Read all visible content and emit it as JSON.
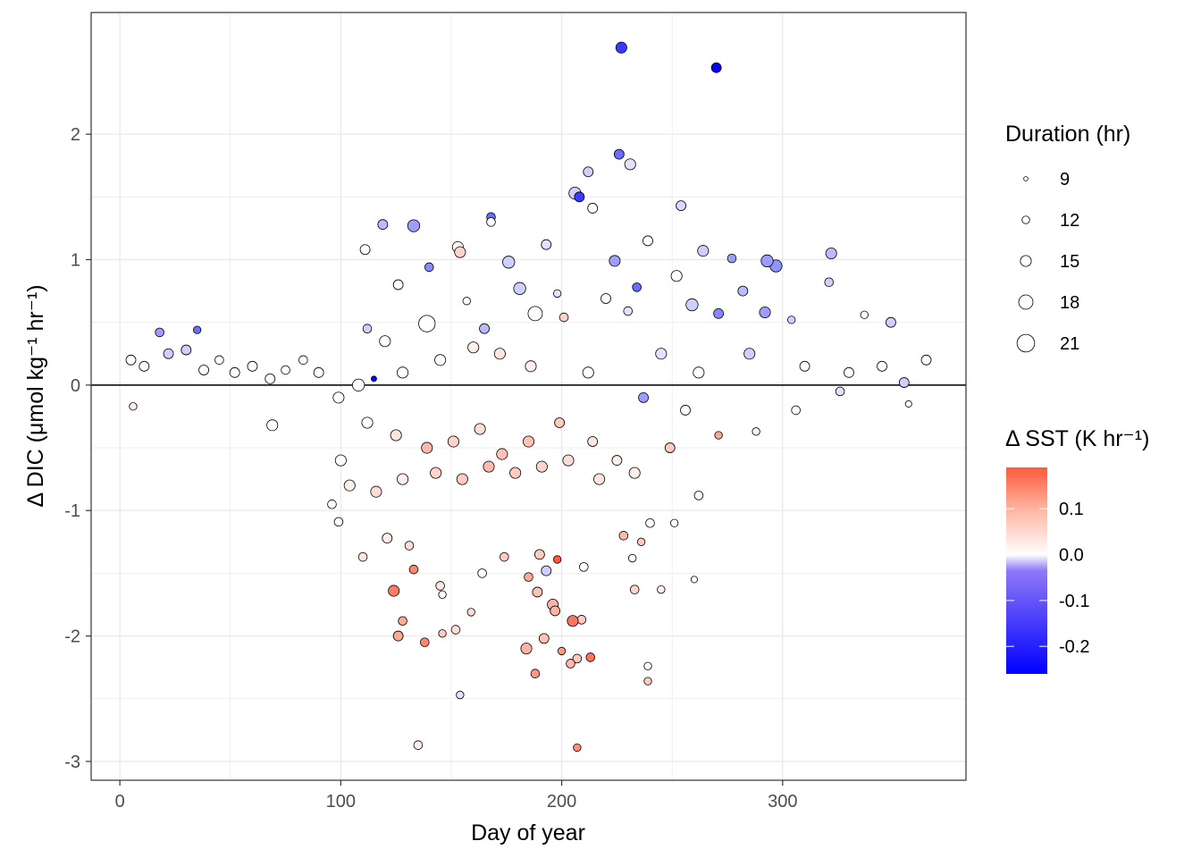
{
  "colors": {
    "positive": "#FF5A3C",
    "neutral": "#FFFFFF",
    "negative": "#0000FF",
    "grid": "#EBEBEB",
    "panel_border": "#333333",
    "zero_line": "#000000"
  },
  "chart_data": {
    "type": "scatter",
    "xlabel": "Day of year",
    "ylabel": "Δ DIC (μmol kg⁻¹ hr⁻¹)",
    "xlim": [
      -13,
      383
    ],
    "ylim": [
      -3.15,
      2.97
    ],
    "x_ticks": [
      0,
      100,
      200,
      300
    ],
    "y_ticks": [
      -3,
      -2,
      -1,
      0,
      1,
      2
    ],
    "grid": true,
    "hline": 0,
    "legend_position": "right",
    "size_legend": {
      "title": "Duration (hr)",
      "values": [
        9,
        12,
        15,
        18,
        21
      ]
    },
    "color_legend": {
      "title": "Δ SST (K hr⁻¹)",
      "ticks": [
        0.1,
        0.0,
        -0.1,
        -0.2
      ],
      "tick_labels": [
        "0.1",
        "0.0",
        "-0.1",
        "-0.2"
      ],
      "range": [
        -0.26,
        0.19
      ]
    },
    "points": [
      {
        "x": 227,
        "y": 2.69,
        "sst": -0.2,
        "duration": 15
      },
      {
        "x": 270,
        "y": 2.53,
        "sst": -0.26,
        "duration": 14
      },
      {
        "x": 226,
        "y": 1.84,
        "sst": -0.15,
        "duration": 14
      },
      {
        "x": 231,
        "y": 1.76,
        "sst": -0.03,
        "duration": 15
      },
      {
        "x": 212,
        "y": 1.7,
        "sst": -0.05,
        "duration": 14
      },
      {
        "x": 206,
        "y": 1.53,
        "sst": -0.05,
        "duration": 16
      },
      {
        "x": 208,
        "y": 1.5,
        "sst": -0.2,
        "duration": 14
      },
      {
        "x": 214,
        "y": 1.41,
        "sst": 0.0,
        "duration": 14
      },
      {
        "x": 254,
        "y": 1.43,
        "sst": -0.04,
        "duration": 14
      },
      {
        "x": 168,
        "y": 1.34,
        "sst": -0.15,
        "duration": 13
      },
      {
        "x": 119,
        "y": 1.28,
        "sst": -0.07,
        "duration": 14
      },
      {
        "x": 133,
        "y": 1.27,
        "sst": -0.1,
        "duration": 16
      },
      {
        "x": 168,
        "y": 1.3,
        "sst": 0.0,
        "duration": 13
      },
      {
        "x": 193,
        "y": 1.12,
        "sst": -0.03,
        "duration": 14
      },
      {
        "x": 153,
        "y": 1.1,
        "sst": 0.0,
        "duration": 15
      },
      {
        "x": 154,
        "y": 1.06,
        "sst": 0.05,
        "duration": 15
      },
      {
        "x": 111,
        "y": 1.08,
        "sst": 0.0,
        "duration": 14
      },
      {
        "x": 239,
        "y": 1.15,
        "sst": 0.0,
        "duration": 14
      },
      {
        "x": 264,
        "y": 1.07,
        "sst": -0.05,
        "duration": 15
      },
      {
        "x": 297,
        "y": 0.95,
        "sst": -0.11,
        "duration": 16
      },
      {
        "x": 322,
        "y": 1.05,
        "sst": -0.07,
        "duration": 15
      },
      {
        "x": 293,
        "y": 0.99,
        "sst": -0.1,
        "duration": 16
      },
      {
        "x": 277,
        "y": 1.01,
        "sst": -0.1,
        "duration": 13
      },
      {
        "x": 224,
        "y": 0.99,
        "sst": -0.1,
        "duration": 15
      },
      {
        "x": 234,
        "y": 0.78,
        "sst": -0.15,
        "duration": 13
      },
      {
        "x": 140,
        "y": 0.94,
        "sst": -0.12,
        "duration": 13
      },
      {
        "x": 176,
        "y": 0.98,
        "sst": -0.05,
        "duration": 16
      },
      {
        "x": 181,
        "y": 0.77,
        "sst": -0.05,
        "duration": 16
      },
      {
        "x": 252,
        "y": 0.87,
        "sst": 0.0,
        "duration": 15
      },
      {
        "x": 282,
        "y": 0.75,
        "sst": -0.07,
        "duration": 14
      },
      {
        "x": 321,
        "y": 0.82,
        "sst": -0.05,
        "duration": 13
      },
      {
        "x": 126,
        "y": 0.8,
        "sst": 0.0,
        "duration": 14
      },
      {
        "x": 157,
        "y": 0.67,
        "sst": 0.0,
        "duration": 12
      },
      {
        "x": 198,
        "y": 0.73,
        "sst": -0.03,
        "duration": 12
      },
      {
        "x": 220,
        "y": 0.69,
        "sst": 0.0,
        "duration": 14
      },
      {
        "x": 188,
        "y": 0.57,
        "sst": 0.0,
        "duration": 18
      },
      {
        "x": 259,
        "y": 0.64,
        "sst": -0.05,
        "duration": 16
      },
      {
        "x": 271,
        "y": 0.57,
        "sst": -0.12,
        "duration": 14
      },
      {
        "x": 292,
        "y": 0.58,
        "sst": -0.1,
        "duration": 15
      },
      {
        "x": 139,
        "y": 0.49,
        "sst": 0.0,
        "duration": 20
      },
      {
        "x": 165,
        "y": 0.45,
        "sst": -0.07,
        "duration": 14
      },
      {
        "x": 201,
        "y": 0.54,
        "sst": 0.05,
        "duration": 13
      },
      {
        "x": 230,
        "y": 0.59,
        "sst": -0.03,
        "duration": 13
      },
      {
        "x": 112,
        "y": 0.45,
        "sst": -0.05,
        "duration": 13
      },
      {
        "x": 18,
        "y": 0.42,
        "sst": -0.1,
        "duration": 13
      },
      {
        "x": 35,
        "y": 0.44,
        "sst": -0.15,
        "duration": 12
      },
      {
        "x": 304,
        "y": 0.52,
        "sst": -0.05,
        "duration": 12
      },
      {
        "x": 337,
        "y": 0.56,
        "sst": 0.0,
        "duration": 12
      },
      {
        "x": 349,
        "y": 0.5,
        "sst": -0.05,
        "duration": 14
      },
      {
        "x": 5,
        "y": 0.2,
        "sst": 0.0,
        "duration": 14
      },
      {
        "x": 11,
        "y": 0.15,
        "sst": 0.0,
        "duration": 14
      },
      {
        "x": 22,
        "y": 0.25,
        "sst": -0.05,
        "duration": 14
      },
      {
        "x": 30,
        "y": 0.28,
        "sst": -0.05,
        "duration": 14
      },
      {
        "x": 38,
        "y": 0.12,
        "sst": 0.0,
        "duration": 14
      },
      {
        "x": 45,
        "y": 0.2,
        "sst": 0.0,
        "duration": 13
      },
      {
        "x": 52,
        "y": 0.1,
        "sst": 0.0,
        "duration": 14
      },
      {
        "x": 60,
        "y": 0.15,
        "sst": 0.0,
        "duration": 14
      },
      {
        "x": 68,
        "y": 0.05,
        "sst": 0.0,
        "duration": 14
      },
      {
        "x": 75,
        "y": 0.12,
        "sst": 0.0,
        "duration": 13
      },
      {
        "x": 83,
        "y": 0.2,
        "sst": 0.0,
        "duration": 13
      },
      {
        "x": 90,
        "y": 0.1,
        "sst": 0.0,
        "duration": 14
      },
      {
        "x": 6,
        "y": -0.17,
        "sst": 0.02,
        "duration": 12
      },
      {
        "x": 69,
        "y": -0.32,
        "sst": 0.0,
        "duration": 15
      },
      {
        "x": 115,
        "y": 0.05,
        "sst": -0.26,
        "duration": 10
      },
      {
        "x": 108,
        "y": 0.0,
        "sst": 0.0,
        "duration": 16
      },
      {
        "x": 99,
        "y": -0.1,
        "sst": 0.0,
        "duration": 15
      },
      {
        "x": 120,
        "y": 0.35,
        "sst": 0.0,
        "duration": 15
      },
      {
        "x": 128,
        "y": 0.1,
        "sst": 0.0,
        "duration": 15
      },
      {
        "x": 145,
        "y": 0.2,
        "sst": 0.0,
        "duration": 15
      },
      {
        "x": 160,
        "y": 0.3,
        "sst": 0.02,
        "duration": 15
      },
      {
        "x": 172,
        "y": 0.25,
        "sst": 0.03,
        "duration": 15
      },
      {
        "x": 186,
        "y": 0.15,
        "sst": 0.02,
        "duration": 15
      },
      {
        "x": 212,
        "y": 0.1,
        "sst": 0.0,
        "duration": 15
      },
      {
        "x": 245,
        "y": 0.25,
        "sst": -0.03,
        "duration": 15
      },
      {
        "x": 262,
        "y": 0.1,
        "sst": 0.0,
        "duration": 15
      },
      {
        "x": 285,
        "y": 0.25,
        "sst": -0.05,
        "duration": 15
      },
      {
        "x": 310,
        "y": 0.15,
        "sst": 0.0,
        "duration": 14
      },
      {
        "x": 330,
        "y": 0.1,
        "sst": 0.0,
        "duration": 14
      },
      {
        "x": 345,
        "y": 0.15,
        "sst": 0.0,
        "duration": 14
      },
      {
        "x": 355,
        "y": 0.02,
        "sst": -0.05,
        "duration": 14
      },
      {
        "x": 365,
        "y": 0.2,
        "sst": 0.0,
        "duration": 14
      },
      {
        "x": 357,
        "y": -0.15,
        "sst": 0.0,
        "duration": 11
      },
      {
        "x": 326,
        "y": -0.05,
        "sst": -0.03,
        "duration": 13
      },
      {
        "x": 306,
        "y": -0.2,
        "sst": 0.0,
        "duration": 13
      },
      {
        "x": 288,
        "y": -0.37,
        "sst": 0.02,
        "duration": 12
      },
      {
        "x": 271,
        "y": -0.4,
        "sst": 0.1,
        "duration": 12
      },
      {
        "x": 256,
        "y": -0.2,
        "sst": 0.0,
        "duration": 14
      },
      {
        "x": 237,
        "y": -0.1,
        "sst": -0.1,
        "duration": 14
      },
      {
        "x": 225,
        "y": -0.6,
        "sst": 0.02,
        "duration": 14
      },
      {
        "x": 214,
        "y": -0.45,
        "sst": 0.03,
        "duration": 14
      },
      {
        "x": 199,
        "y": -0.3,
        "sst": 0.06,
        "duration": 14
      },
      {
        "x": 185,
        "y": -0.45,
        "sst": 0.07,
        "duration": 15
      },
      {
        "x": 173,
        "y": -0.55,
        "sst": 0.07,
        "duration": 15
      },
      {
        "x": 163,
        "y": -0.35,
        "sst": 0.04,
        "duration": 15
      },
      {
        "x": 151,
        "y": -0.45,
        "sst": 0.05,
        "duration": 15
      },
      {
        "x": 139,
        "y": -0.5,
        "sst": 0.08,
        "duration": 15
      },
      {
        "x": 125,
        "y": -0.4,
        "sst": 0.03,
        "duration": 15
      },
      {
        "x": 112,
        "y": -0.3,
        "sst": 0.0,
        "duration": 15
      },
      {
        "x": 100,
        "y": -0.6,
        "sst": 0.0,
        "duration": 15
      },
      {
        "x": 96,
        "y": -0.95,
        "sst": 0.0,
        "duration": 13
      },
      {
        "x": 99,
        "y": -1.09,
        "sst": 0.0,
        "duration": 13
      },
      {
        "x": 104,
        "y": -0.8,
        "sst": 0.02,
        "duration": 15
      },
      {
        "x": 116,
        "y": -0.85,
        "sst": 0.04,
        "duration": 15
      },
      {
        "x": 128,
        "y": -0.75,
        "sst": 0.02,
        "duration": 15
      },
      {
        "x": 143,
        "y": -0.7,
        "sst": 0.05,
        "duration": 15
      },
      {
        "x": 155,
        "y": -0.75,
        "sst": 0.06,
        "duration": 15
      },
      {
        "x": 167,
        "y": -0.65,
        "sst": 0.08,
        "duration": 15
      },
      {
        "x": 179,
        "y": -0.7,
        "sst": 0.06,
        "duration": 15
      },
      {
        "x": 191,
        "y": -0.65,
        "sst": 0.05,
        "duration": 15
      },
      {
        "x": 203,
        "y": -0.6,
        "sst": 0.04,
        "duration": 15
      },
      {
        "x": 217,
        "y": -0.75,
        "sst": 0.03,
        "duration": 15
      },
      {
        "x": 233,
        "y": -0.7,
        "sst": 0.02,
        "duration": 15
      },
      {
        "x": 249,
        "y": -0.5,
        "sst": 0.06,
        "duration": 14
      },
      {
        "x": 262,
        "y": -0.88,
        "sst": 0.0,
        "duration": 13
      },
      {
        "x": 240,
        "y": -1.1,
        "sst": 0.0,
        "duration": 13
      },
      {
        "x": 251,
        "y": -1.1,
        "sst": 0.0,
        "duration": 12
      },
      {
        "x": 228,
        "y": -1.2,
        "sst": 0.08,
        "duration": 13
      },
      {
        "x": 236,
        "y": -1.25,
        "sst": 0.06,
        "duration": 12
      },
      {
        "x": 232,
        "y": -1.38,
        "sst": 0.0,
        "duration": 12
      },
      {
        "x": 233,
        "y": -1.63,
        "sst": 0.05,
        "duration": 13
      },
      {
        "x": 245,
        "y": -1.63,
        "sst": 0.02,
        "duration": 12
      },
      {
        "x": 260,
        "y": -1.55,
        "sst": 0.0,
        "duration": 11
      },
      {
        "x": 210,
        "y": -1.45,
        "sst": 0.0,
        "duration": 13
      },
      {
        "x": 198,
        "y": -1.39,
        "sst": 0.19,
        "duration": 12
      },
      {
        "x": 193,
        "y": -1.48,
        "sst": -0.05,
        "duration": 14
      },
      {
        "x": 190,
        "y": -1.35,
        "sst": 0.06,
        "duration": 14
      },
      {
        "x": 185,
        "y": -1.53,
        "sst": 0.1,
        "duration": 13
      },
      {
        "x": 174,
        "y": -1.37,
        "sst": 0.06,
        "duration": 13
      },
      {
        "x": 189,
        "y": -1.65,
        "sst": 0.07,
        "duration": 14
      },
      {
        "x": 196,
        "y": -1.75,
        "sst": 0.09,
        "duration": 15
      },
      {
        "x": 197,
        "y": -1.8,
        "sst": 0.09,
        "duration": 14
      },
      {
        "x": 209,
        "y": -1.87,
        "sst": 0.06,
        "duration": 13
      },
      {
        "x": 205,
        "y": -1.88,
        "sst": 0.16,
        "duration": 15
      },
      {
        "x": 164,
        "y": -1.5,
        "sst": 0.0,
        "duration": 13
      },
      {
        "x": 145,
        "y": -1.6,
        "sst": 0.03,
        "duration": 13
      },
      {
        "x": 146,
        "y": -1.67,
        "sst": 0.0,
        "duration": 12
      },
      {
        "x": 159,
        "y": -1.81,
        "sst": 0.04,
        "duration": 12
      },
      {
        "x": 152,
        "y": -1.95,
        "sst": 0.04,
        "duration": 13
      },
      {
        "x": 146,
        "y": -1.98,
        "sst": 0.06,
        "duration": 12
      },
      {
        "x": 138,
        "y": -2.05,
        "sst": 0.14,
        "duration": 13
      },
      {
        "x": 128,
        "y": -1.88,
        "sst": 0.1,
        "duration": 13
      },
      {
        "x": 126,
        "y": -2.0,
        "sst": 0.1,
        "duration": 14
      },
      {
        "x": 124,
        "y": -1.64,
        "sst": 0.15,
        "duration": 15
      },
      {
        "x": 133,
        "y": -1.47,
        "sst": 0.14,
        "duration": 13
      },
      {
        "x": 131,
        "y": -1.28,
        "sst": 0.04,
        "duration": 13
      },
      {
        "x": 121,
        "y": -1.22,
        "sst": 0.02,
        "duration": 14
      },
      {
        "x": 110,
        "y": -1.37,
        "sst": 0.03,
        "duration": 13
      },
      {
        "x": 184,
        "y": -2.1,
        "sst": 0.09,
        "duration": 15
      },
      {
        "x": 192,
        "y": -2.02,
        "sst": 0.07,
        "duration": 14
      },
      {
        "x": 188,
        "y": -2.3,
        "sst": 0.12,
        "duration": 13
      },
      {
        "x": 200,
        "y": -2.12,
        "sst": 0.12,
        "duration": 12
      },
      {
        "x": 207,
        "y": -2.18,
        "sst": 0.06,
        "duration": 13
      },
      {
        "x": 204,
        "y": -2.22,
        "sst": 0.08,
        "duration": 13
      },
      {
        "x": 213,
        "y": -2.17,
        "sst": 0.16,
        "duration": 13
      },
      {
        "x": 239,
        "y": -2.24,
        "sst": 0.0,
        "duration": 12
      },
      {
        "x": 239,
        "y": -2.36,
        "sst": 0.06,
        "duration": 12
      },
      {
        "x": 154,
        "y": -2.47,
        "sst": -0.03,
        "duration": 12
      },
      {
        "x": 135,
        "y": -2.87,
        "sst": 0.02,
        "duration": 13
      },
      {
        "x": 207,
        "y": -2.89,
        "sst": 0.13,
        "duration": 12
      }
    ]
  }
}
